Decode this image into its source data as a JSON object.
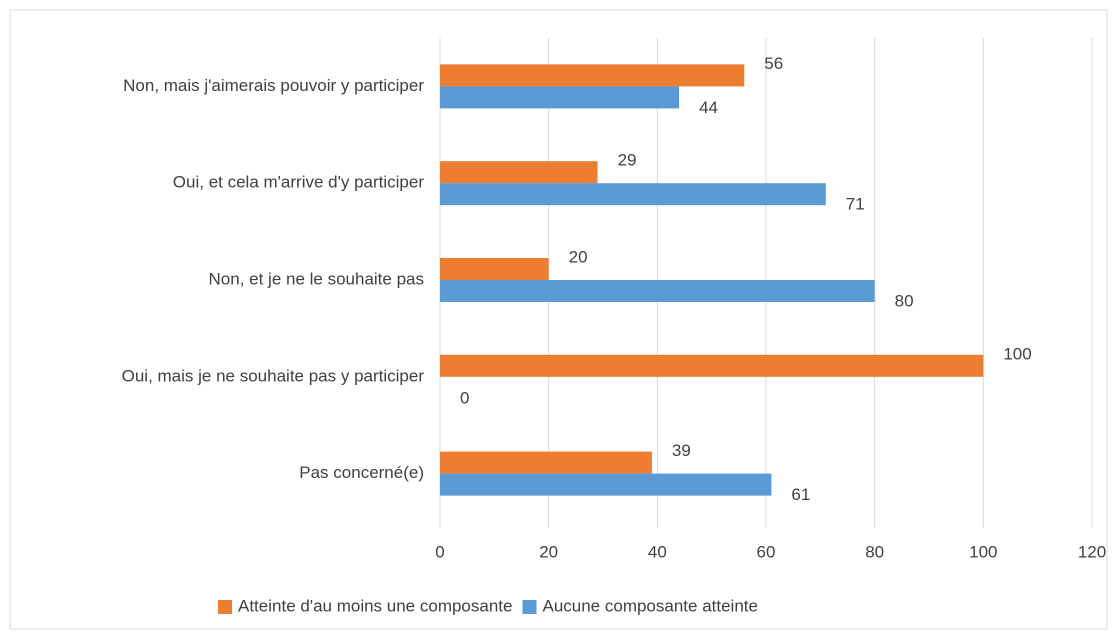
{
  "chart_data": {
    "type": "bar",
    "orientation": "horizontal",
    "categories": [
      "Non, mais j'aimerais pouvoir y participer",
      "Oui, et cela m'arrive d'y participer",
      "Non, et je ne le souhaite pas",
      "Oui, mais je ne souhaite pas y participer",
      "Pas concerné(e)"
    ],
    "series": [
      {
        "name": "Atteinte d'au moins une composante",
        "color": "#ED7D31",
        "values": [
          56,
          29,
          20,
          100,
          39
        ]
      },
      {
        "name": "Aucune composante atteinte",
        "color": "#5B9BD5",
        "values": [
          44,
          71,
          80,
          0,
          61
        ]
      }
    ],
    "xlim": [
      0,
      120
    ],
    "xticks": [
      0,
      20,
      40,
      60,
      80,
      100,
      120
    ],
    "grid": true,
    "legend": "bottom"
  }
}
